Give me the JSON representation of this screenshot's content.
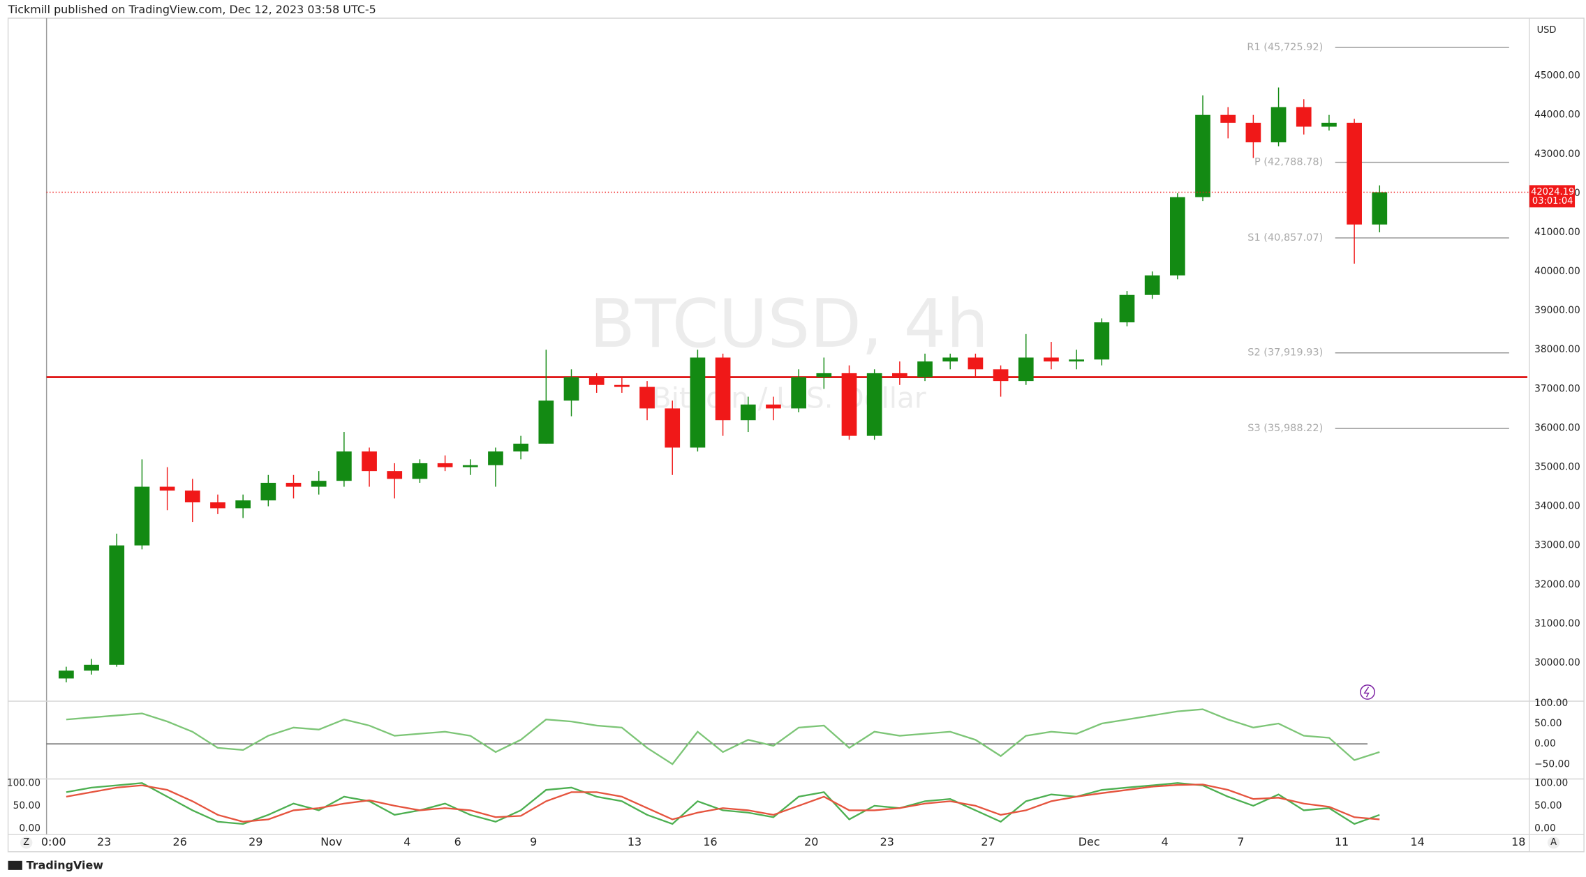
{
  "header": "Tickmill published on TradingView.com, Dec 12, 2023 03:58 UTC-5",
  "footer": {
    "logo": "TradingView",
    "left_button": "Z",
    "right_button": "A"
  },
  "chart_data": [
    {
      "type": "candlestick",
      "title": "BTCUSD, 4h",
      "subtitle": "Bitcoin / U.S. Dollar",
      "currency": "USD",
      "up_color": "#138a13",
      "down_color": "#f01818",
      "categories": [
        "0:00",
        null,
        "23",
        null,
        null,
        "26",
        null,
        null,
        "29",
        null,
        null,
        "Nov",
        null,
        null,
        "4",
        null,
        "6",
        null,
        null,
        "9",
        null,
        null,
        null,
        "13",
        null,
        null,
        "16",
        null,
        null,
        null,
        "20",
        null,
        null,
        "23",
        null,
        null,
        null,
        "27",
        null,
        null,
        null,
        "Dec",
        null,
        null,
        "4",
        null,
        null,
        "7",
        null,
        null,
        null,
        "11",
        null,
        null,
        "14",
        null,
        null,
        null,
        "18"
      ],
      "open": [
        29600,
        29800,
        29950,
        33000,
        34500,
        34400,
        34100,
        33950,
        34150,
        34600,
        34500,
        34650,
        35400,
        34900,
        34700,
        35100,
        35000,
        35050,
        35400,
        35600,
        36700,
        37300,
        37100,
        37050,
        36500,
        35500,
        37800,
        36200,
        36600,
        36500,
        37300,
        37400,
        35800,
        37400,
        37300,
        37700,
        37800,
        37500,
        37200,
        37800,
        37700,
        37750,
        38700,
        39400,
        39900,
        41900,
        44000,
        43800,
        43300,
        44200,
        43700,
        43800,
        41200,
        null,
        null,
        null,
        null,
        null,
        null
      ],
      "high": [
        29900,
        30100,
        33300,
        35200,
        35000,
        34700,
        34300,
        34300,
        34800,
        34800,
        34900,
        35900,
        35500,
        35100,
        35200,
        35300,
        35200,
        35500,
        35800,
        38000,
        37500,
        37400,
        37300,
        37200,
        36700,
        38000,
        37900,
        36800,
        36800,
        37500,
        37800,
        37600,
        37500,
        37700,
        37900,
        37900,
        37900,
        37600,
        38400,
        38200,
        38000,
        38800,
        39500,
        40000,
        42000,
        44500,
        44200,
        44000,
        44700,
        44400,
        44000,
        43900,
        42200,
        null,
        null,
        null,
        null,
        null,
        null
      ],
      "low": [
        29500,
        29700,
        29900,
        32900,
        33900,
        33600,
        33800,
        33700,
        34000,
        34200,
        34300,
        34500,
        34500,
        34200,
        34600,
        34900,
        34800,
        34500,
        35200,
        35600,
        36300,
        36900,
        36900,
        36200,
        34800,
        35400,
        35800,
        35900,
        36200,
        36400,
        37000,
        35700,
        35700,
        37100,
        37200,
        37500,
        37300,
        36800,
        37100,
        37500,
        37500,
        37600,
        38600,
        39300,
        39800,
        41800,
        43400,
        42900,
        43200,
        43500,
        43600,
        40200,
        41000,
        null,
        null,
        null,
        null,
        null,
        null
      ],
      "close": [
        29800,
        29950,
        33000,
        34500,
        34400,
        34100,
        33950,
        34150,
        34600,
        34500,
        34650,
        35400,
        34900,
        34700,
        35100,
        35000,
        35050,
        35400,
        35600,
        36700,
        37300,
        37100,
        37050,
        36500,
        35500,
        37800,
        36200,
        36600,
        36500,
        37300,
        37400,
        35800,
        37400,
        37300,
        37700,
        37800,
        37500,
        37200,
        37800,
        37700,
        37750,
        38700,
        39400,
        39900,
        41900,
        44000,
        43800,
        43300,
        44200,
        43700,
        43800,
        41200,
        42024.19,
        null,
        null,
        null,
        null,
        null,
        null
      ],
      "countdown": "03:01:04",
      "horizontal_lines": [
        {
          "value": 37300,
          "color": "#e01a1a"
        }
      ],
      "pivots": [
        {
          "label": "R1 (45,725.92)",
          "value": 45725.92
        },
        {
          "label": "P (42,788.78)",
          "value": 42788.78
        },
        {
          "label": "S1 (40,857.07)",
          "value": 40857.07
        },
        {
          "label": "S2 (37,919.93)",
          "value": 37919.93
        },
        {
          "label": "S3 (35,988.22)",
          "value": 35988.22
        }
      ],
      "ylim": [
        29045,
        46420
      ],
      "yticks": [
        {
          "value": 30000,
          "label": "30000.00"
        },
        {
          "value": 31000,
          "label": "31000.00"
        },
        {
          "value": 32000,
          "label": "32000.00"
        },
        {
          "value": 33000,
          "label": "33000.00"
        },
        {
          "value": 34000,
          "label": "34000.00"
        },
        {
          "value": 35000,
          "label": "35000.00"
        },
        {
          "value": 36000,
          "label": "36000.00"
        },
        {
          "value": 37000,
          "label": "37000.00"
        },
        {
          "value": 38000,
          "label": "38000.00"
        },
        {
          "value": 39000,
          "label": "39000.00"
        },
        {
          "value": 40000,
          "label": "40000.00"
        },
        {
          "value": 41000,
          "label": "41000.00"
        },
        {
          "value": 42000,
          "label": "42000.00"
        },
        {
          "value": 43000,
          "label": "43000.00"
        },
        {
          "value": 44000,
          "label": "44000.00"
        },
        {
          "value": 45000,
          "label": "45000.00"
        }
      ],
      "grid": false
    },
    {
      "type": "line",
      "series": [
        {
          "color": "#7cc576",
          "values": [
            60,
            65,
            70,
            75,
            55,
            30,
            -10,
            -15,
            20,
            40,
            35,
            60,
            45,
            20,
            25,
            30,
            20,
            -20,
            10,
            60,
            55,
            45,
            40,
            -10,
            -50,
            30,
            -20,
            10,
            -5,
            40,
            45,
            -10,
            30,
            20,
            25,
            30,
            10,
            -30,
            20,
            30,
            25,
            50,
            60,
            70,
            80,
            85,
            60,
            40,
            50,
            20,
            15,
            -40,
            -20,
            null,
            null,
            null,
            null,
            null,
            null
          ]
        }
      ],
      "reference_line": {
        "value": 0,
        "color": "#555555"
      },
      "ylim": [
        -84,
        105
      ],
      "yticks": [
        {
          "value": 100,
          "label": "100.00"
        },
        {
          "value": 50,
          "label": "50.00"
        },
        {
          "value": 0,
          "label": "0.00"
        },
        {
          "value": -50,
          "label": "−50.00"
        }
      ],
      "grid": false
    },
    {
      "type": "line",
      "left_axis": true,
      "series": [
        {
          "color": "#4caf50",
          "values": [
            80,
            90,
            95,
            100,
            70,
            40,
            15,
            10,
            30,
            55,
            40,
            70,
            60,
            30,
            40,
            55,
            30,
            15,
            40,
            85,
            90,
            70,
            60,
            30,
            10,
            60,
            40,
            35,
            25,
            70,
            80,
            20,
            50,
            45,
            60,
            65,
            40,
            15,
            60,
            75,
            70,
            85,
            90,
            95,
            100,
            95,
            70,
            50,
            75,
            40,
            45,
            10,
            30,
            null,
            null,
            null,
            null,
            null,
            null
          ]
        },
        {
          "color": "#e5533d",
          "values": [
            70,
            80,
            90,
            95,
            85,
            60,
            30,
            15,
            20,
            40,
            45,
            55,
            62,
            50,
            40,
            45,
            40,
            25,
            28,
            60,
            80,
            80,
            70,
            45,
            20,
            35,
            45,
            40,
            30,
            50,
            70,
            40,
            40,
            45,
            55,
            60,
            50,
            30,
            40,
            60,
            70,
            78,
            85,
            92,
            96,
            97,
            85,
            65,
            68,
            55,
            48,
            25,
            20,
            null,
            null,
            null,
            null,
            null,
            null
          ]
        }
      ],
      "ylim": [
        -11,
        109
      ],
      "yticks": [
        {
          "value": 100,
          "label": "100.00"
        },
        {
          "value": 50,
          "label": "50.00"
        },
        {
          "value": 0,
          "label": "0.00"
        }
      ],
      "grid": false
    }
  ]
}
